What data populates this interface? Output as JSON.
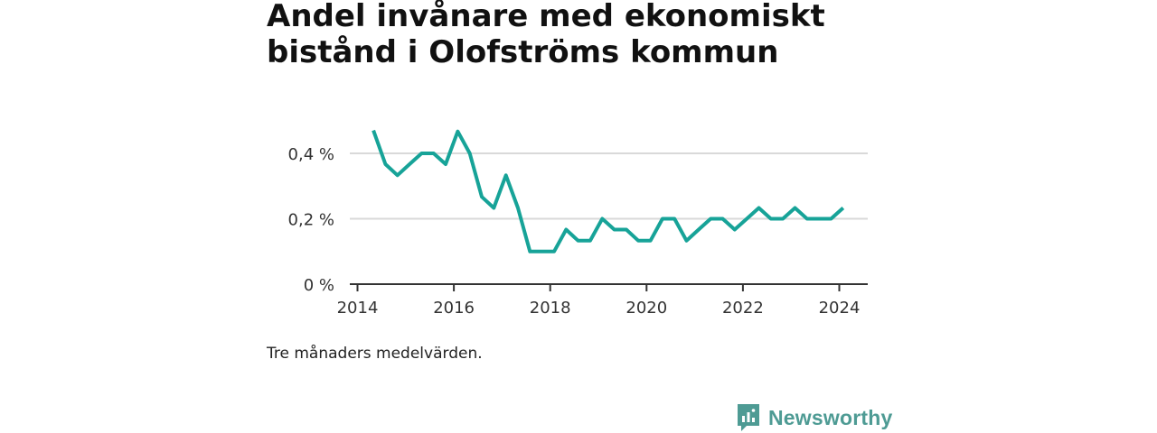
{
  "chart_data": {
    "type": "line",
    "title": "Andel invånare med ekonomiskt bistånd i Olofströms kommun",
    "note": "Tre månaders medelvärden.",
    "x_ticks": [
      "2014",
      "2016",
      "2018",
      "2020",
      "2022",
      "2024"
    ],
    "y_ticks": [
      {
        "value": 0,
        "label": "0 %"
      },
      {
        "value": 0.2,
        "label": "0,2 %"
      },
      {
        "value": 0.4,
        "label": "0,4 %"
      }
    ],
    "xlim": [
      2013.9,
      2024.6
    ],
    "ylim": [
      0,
      0.4
    ],
    "grid": true,
    "series": [
      {
        "color": "#17a398",
        "x": [
          2014.33,
          2014.58,
          2014.83,
          2015.08,
          2015.33,
          2015.58,
          2015.83,
          2016.08,
          2016.33,
          2016.58,
          2016.83,
          2017.08,
          2017.33,
          2017.58,
          2017.83,
          2018.08,
          2018.33,
          2018.58,
          2018.83,
          2019.08,
          2019.33,
          2019.58,
          2019.83,
          2020.08,
          2020.33,
          2020.58,
          2020.83,
          2021.08,
          2021.33,
          2021.58,
          2021.83,
          2022.08,
          2022.33,
          2022.58,
          2022.83,
          2023.08,
          2023.33,
          2023.58,
          2023.83,
          2024.08
        ],
        "y": [
          0.47,
          0.367,
          0.333,
          0.367,
          0.4,
          0.4,
          0.367,
          0.467,
          0.4,
          0.267,
          0.233,
          0.333,
          0.233,
          0.1,
          0.1,
          0.1,
          0.167,
          0.133,
          0.133,
          0.2,
          0.167,
          0.167,
          0.133,
          0.133,
          0.2,
          0.2,
          0.133,
          0.167,
          0.2,
          0.2,
          0.167,
          0.2,
          0.233,
          0.2,
          0.2,
          0.233,
          0.2,
          0.2,
          0.2,
          0.233
        ]
      }
    ]
  },
  "brand": {
    "name": "Newsworthy",
    "icon": "newsworthy-logo-icon",
    "color": "#4e9b94"
  }
}
